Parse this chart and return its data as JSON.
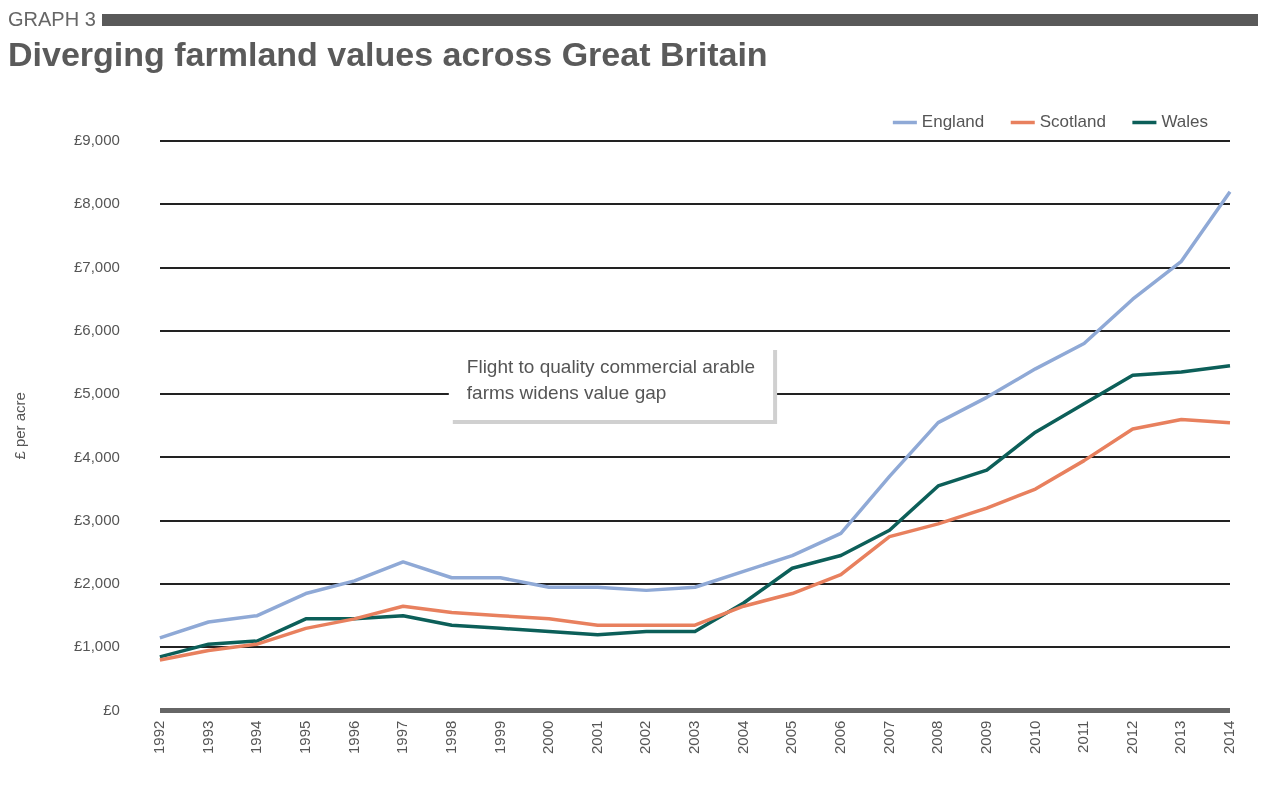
{
  "chart_data": {
    "type": "line",
    "subtitle": "GRAPH 3",
    "title": "Diverging farmland values across Great Britain",
    "ylabel": "£ per acre",
    "annotations": [
      "Flight to quality commercial arable farms widens value gap"
    ],
    "categories": [
      "1992",
      "1993",
      "1994",
      "1995",
      "1996",
      "1997",
      "1998",
      "1999",
      "2000",
      "2001",
      "2002",
      "2003",
      "2004",
      "2005",
      "2006",
      "2007",
      "2008",
      "2009",
      "2010",
      "2011",
      "2012",
      "2013",
      "2014"
    ],
    "series": [
      {
        "name": "England",
        "color": "#8fa9d6",
        "values": [
          1150,
          1400,
          1500,
          1850,
          2050,
          2350,
          2100,
          2100,
          1950,
          1950,
          1900,
          1950,
          2200,
          2450,
          2800,
          3700,
          4550,
          4950,
          5400,
          5800,
          6500,
          7100,
          8200
        ]
      },
      {
        "name": "Scotland",
        "color": "#e8805e",
        "values": [
          800,
          950,
          1050,
          1300,
          1450,
          1650,
          1550,
          1500,
          1450,
          1350,
          1350,
          1350,
          1650,
          1850,
          2150,
          2750,
          2950,
          3200,
          3500,
          3950,
          4450,
          4600,
          4550
        ]
      },
      {
        "name": "Wales",
        "color": "#0c5f59",
        "values": [
          850,
          1050,
          1100,
          1450,
          1450,
          1500,
          1350,
          1300,
          1250,
          1200,
          1250,
          1250,
          1700,
          2250,
          2450,
          2850,
          3550,
          3800,
          4400,
          4850,
          5300,
          5350,
          5450
        ]
      }
    ],
    "ylim": [
      0,
      9000
    ],
    "yticks": [
      {
        "value": 0,
        "label": "£0"
      },
      {
        "value": 1000,
        "label": "£1,000"
      },
      {
        "value": 2000,
        "label": "£2,000"
      },
      {
        "value": 3000,
        "label": "£3,000"
      },
      {
        "value": 4000,
        "label": "£4,000"
      },
      {
        "value": 5000,
        "label": "£5,000"
      },
      {
        "value": 6000,
        "label": "£6,000"
      },
      {
        "value": 7000,
        "label": "£7,000"
      },
      {
        "value": 8000,
        "label": "£8,000"
      },
      {
        "value": 9000,
        "label": "£9,000"
      }
    ],
    "grid": "y",
    "legend": "top right",
    "marker": "none",
    "line_style": "solid"
  }
}
